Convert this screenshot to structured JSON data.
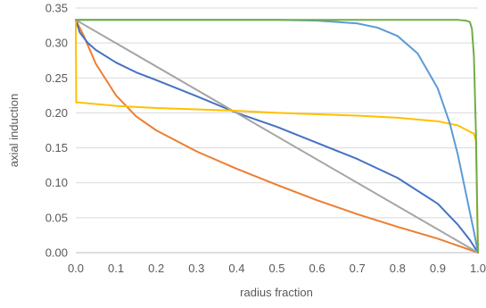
{
  "chart_data": {
    "type": "line",
    "title": "",
    "xlabel": "radius fraction",
    "ylabel": "axial induction",
    "xlim": [
      0,
      1
    ],
    "ylim": [
      0,
      0.35
    ],
    "xticks": [
      "0.0",
      "0.1",
      "0.2",
      "0.3",
      "0.4",
      "0.5",
      "0.6",
      "0.7",
      "0.8",
      "0.9",
      "1.0"
    ],
    "yticks": [
      "0.00",
      "0.05",
      "0.10",
      "0.15",
      "0.20",
      "0.25",
      "0.30",
      "0.35"
    ],
    "grid": "horizontal",
    "legend": "none",
    "series": [
      {
        "color": "#ed7d31",
        "x": [
          0,
          0.02,
          0.05,
          0.1,
          0.15,
          0.2,
          0.3,
          0.4,
          0.5,
          0.6,
          0.7,
          0.8,
          0.9,
          0.95,
          1.0
        ],
        "y": [
          0.333,
          0.31,
          0.27,
          0.225,
          0.195,
          0.175,
          0.145,
          0.12,
          0.097,
          0.075,
          0.055,
          0.037,
          0.02,
          0.01,
          0.0
        ]
      },
      {
        "color": "#4472c4",
        "x": [
          0,
          0.01,
          0.03,
          0.05,
          0.1,
          0.15,
          0.2,
          0.3,
          0.4,
          0.5,
          0.6,
          0.7,
          0.8,
          0.9,
          0.95,
          0.98,
          1.0
        ],
        "y": [
          0.333,
          0.315,
          0.3,
          0.29,
          0.272,
          0.258,
          0.247,
          0.224,
          0.2,
          0.18,
          0.157,
          0.134,
          0.107,
          0.07,
          0.04,
          0.018,
          0.0
        ]
      },
      {
        "color": "#a5a5a5",
        "x": [
          0,
          1
        ],
        "y": [
          0.333,
          0.0
        ]
      },
      {
        "color": "#ffc000",
        "x": [
          0,
          0.001,
          0.005,
          0.1,
          0.2,
          0.3,
          0.4,
          0.5,
          0.6,
          0.7,
          0.8,
          0.9,
          0.95,
          0.99,
          0.995,
          1.0
        ],
        "y": [
          0.333,
          0.215,
          0.215,
          0.21,
          0.207,
          0.205,
          0.203,
          0.2,
          0.198,
          0.196,
          0.193,
          0.188,
          0.182,
          0.17,
          0.16,
          0.0
        ]
      },
      {
        "color": "#5b9bd5",
        "x": [
          0,
          0.5,
          0.6,
          0.7,
          0.75,
          0.8,
          0.85,
          0.9,
          0.93,
          0.95,
          0.97,
          0.99,
          1.0
        ],
        "y": [
          0.333,
          0.333,
          0.332,
          0.328,
          0.322,
          0.31,
          0.285,
          0.235,
          0.185,
          0.14,
          0.085,
          0.03,
          0.0
        ]
      },
      {
        "color": "#70ad47",
        "x": [
          0,
          0.9,
          0.95,
          0.97,
          0.98,
          0.985,
          0.99,
          0.995,
          1.0
        ],
        "y": [
          0.333,
          0.333,
          0.333,
          0.332,
          0.33,
          0.32,
          0.28,
          0.17,
          0.0
        ]
      }
    ]
  }
}
